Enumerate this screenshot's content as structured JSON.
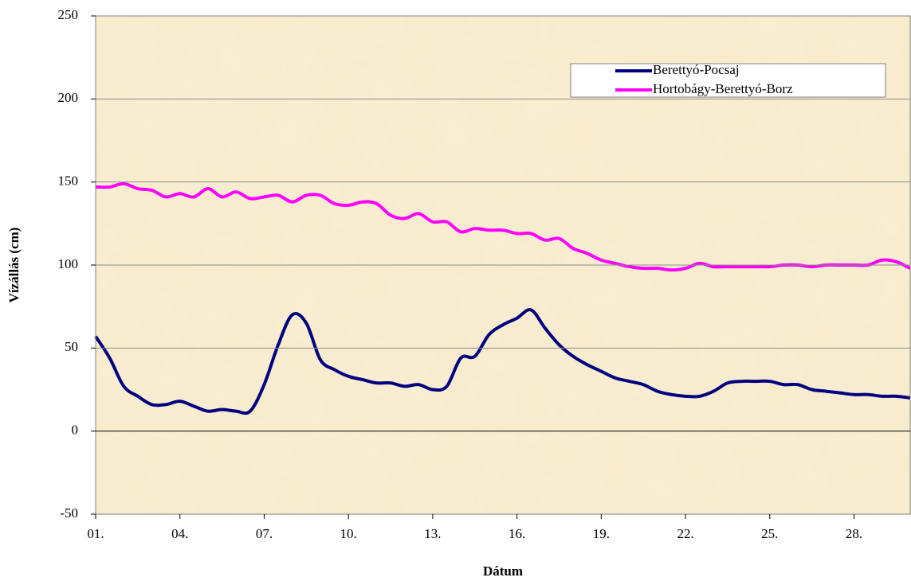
{
  "chart_data": {
    "type": "line",
    "xlabel": "Dátum",
    "ylabel": "Vízállás (cm)",
    "x": [
      1,
      1.5,
      2,
      2.5,
      3,
      3.5,
      4,
      4.5,
      5,
      5.5,
      6,
      6.5,
      7,
      7.5,
      8,
      8.5,
      9,
      9.5,
      10,
      10.5,
      11,
      11.5,
      12,
      12.5,
      13,
      13.5,
      14,
      14.5,
      15,
      15.5,
      16,
      16.5,
      17,
      17.5,
      18,
      18.5,
      19,
      19.5,
      20,
      20.5,
      21,
      21.5,
      22,
      22.5,
      23,
      23.5,
      24,
      24.5,
      25,
      25.5,
      26,
      26.5,
      27,
      27.5,
      28,
      28.5,
      29,
      29.5,
      30
    ],
    "series": [
      {
        "name": "Berettyó-Pocsaj",
        "color": "#000080",
        "values": [
          57,
          44,
          27,
          21,
          16,
          16,
          18,
          15,
          12,
          13,
          12,
          12,
          28,
          52,
          70,
          65,
          43,
          37,
          33,
          31,
          29,
          29,
          27,
          28,
          25,
          27,
          44,
          45,
          58,
          64,
          68,
          73,
          62,
          52,
          45,
          40,
          36,
          32,
          30,
          28,
          24,
          22,
          21,
          21,
          24,
          29,
          30,
          30,
          30,
          28,
          28,
          25,
          24,
          23,
          22,
          22,
          21,
          21,
          20
        ]
      },
      {
        "name": "Hortobágy-Berettyó-Borz",
        "color": "#ff00ff",
        "values": [
          147,
          147,
          149,
          146,
          145,
          141,
          143,
          141,
          146,
          141,
          144,
          140,
          141,
          142,
          138,
          142,
          142,
          137,
          136,
          138,
          137,
          130,
          128,
          131,
          126,
          126,
          120,
          122,
          121,
          121,
          119,
          119,
          115,
          116,
          110,
          107,
          103,
          101,
          99,
          98,
          98,
          97,
          98,
          101,
          99,
          99,
          99,
          99,
          99,
          100,
          100,
          99,
          100,
          100,
          100,
          100,
          103,
          102,
          98
        ]
      }
    ],
    "xlim": [
      1,
      30
    ],
    "xticks": [
      {
        "value": 1,
        "label": "01."
      },
      {
        "value": 4,
        "label": "04."
      },
      {
        "value": 7,
        "label": "07."
      },
      {
        "value": 10,
        "label": "10."
      },
      {
        "value": 13,
        "label": "13."
      },
      {
        "value": 16,
        "label": "16."
      },
      {
        "value": 19,
        "label": "19."
      },
      {
        "value": 22,
        "label": "22."
      },
      {
        "value": 25,
        "label": "25."
      },
      {
        "value": 28,
        "label": "28."
      }
    ],
    "ylim": [
      -50,
      250
    ],
    "yticks": [
      -50,
      0,
      50,
      100,
      150,
      200,
      250
    ],
    "grid": true,
    "legend": "top-right"
  }
}
